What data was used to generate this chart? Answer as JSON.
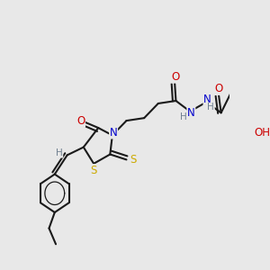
{
  "bg_color": "#e8e8e8",
  "atom_colors": {
    "C": "#000000",
    "N": "#0000cc",
    "O": "#cc0000",
    "S": "#ccaa00",
    "H": "#708090"
  },
  "bond_color": "#1a1a1a",
  "bond_width": 1.5,
  "font_size_atom": 8.5,
  "font_size_h": 7.5
}
